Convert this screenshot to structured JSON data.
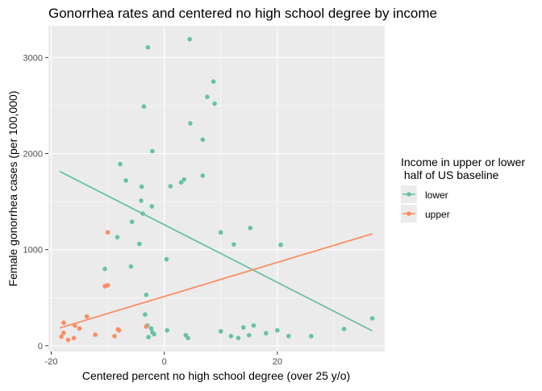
{
  "chart_data": {
    "type": "scatter",
    "title": "Gonorrhea rates and centered no high school degree by income",
    "xlabel": "Centered percent no high school degree (over 25 y/o)",
    "ylabel": "Female gonorrhea cases (per 100,000)",
    "xlim": [
      -20.5,
      39
    ],
    "ylim": [
      -60,
      3330
    ],
    "x_ticks": [
      -20,
      0,
      20
    ],
    "x_tick_labels": [
      "-20",
      "0",
      "20"
    ],
    "y_ticks": [
      0,
      1000,
      2000,
      3000
    ],
    "y_tick_labels": [
      "0",
      "1000",
      "2000",
      "3000"
    ],
    "grid": true,
    "legend": {
      "title_lines": [
        "Income in upper or lower",
        " half of US baseline"
      ],
      "position": "right"
    },
    "colors": {
      "lower": "#66c2a5",
      "upper": "#fc8d62",
      "panel": "#ebebeb"
    },
    "series": [
      {
        "name": "lower",
        "color": "#66c2a5",
        "points": [
          [
            4.5,
            3190
          ],
          [
            -2.9,
            3105
          ],
          [
            8.7,
            2750
          ],
          [
            7.6,
            2590
          ],
          [
            8.9,
            2520
          ],
          [
            -3.6,
            2490
          ],
          [
            4.6,
            2315
          ],
          [
            6.8,
            2145
          ],
          [
            -2.1,
            2025
          ],
          [
            -7.8,
            1890
          ],
          [
            6.8,
            1770
          ],
          [
            -6.8,
            1720
          ],
          [
            3.5,
            1730
          ],
          [
            3.0,
            1700
          ],
          [
            -4.0,
            1655
          ],
          [
            1.1,
            1660
          ],
          [
            -4.1,
            1510
          ],
          [
            -2.2,
            1450
          ],
          [
            -3.8,
            1375
          ],
          [
            -5.7,
            1290
          ],
          [
            15.2,
            1225
          ],
          [
            10.0,
            1180
          ],
          [
            -8.3,
            1130
          ],
          [
            12.3,
            1055
          ],
          [
            -4.4,
            1060
          ],
          [
            20.6,
            1050
          ],
          [
            0.4,
            900
          ],
          [
            -10.5,
            800
          ],
          [
            -5.9,
            825
          ],
          [
            -3.2,
            530
          ],
          [
            -3.4,
            325
          ],
          [
            -3.0,
            210
          ],
          [
            36.8,
            285
          ],
          [
            31.8,
            175
          ],
          [
            0.5,
            160
          ],
          [
            -2.3,
            180
          ],
          [
            -2.1,
            140
          ],
          [
            10.0,
            150
          ],
          [
            20.0,
            160
          ],
          [
            15.8,
            210
          ],
          [
            14.0,
            190
          ],
          [
            18.0,
            130
          ],
          [
            -1.8,
            120
          ],
          [
            11.8,
            100
          ],
          [
            13.1,
            80
          ],
          [
            15.0,
            110
          ],
          [
            22.0,
            100
          ],
          [
            26.0,
            100
          ],
          [
            3.8,
            110
          ],
          [
            4.2,
            80
          ],
          [
            -2.8,
            90
          ]
        ],
        "trend": [
          [
            -18.5,
            1815
          ],
          [
            36.8,
            155
          ]
        ]
      },
      {
        "name": "upper",
        "color": "#fc8d62",
        "points": [
          [
            -10.0,
            1180
          ],
          [
            -10.0,
            630
          ],
          [
            -10.5,
            620
          ],
          [
            -17.8,
            240
          ],
          [
            -15.0,
            180
          ],
          [
            -13.7,
            305
          ],
          [
            -15.8,
            210
          ],
          [
            -8.2,
            170
          ],
          [
            -8.0,
            160
          ],
          [
            -3.2,
            200
          ],
          [
            -12.2,
            115
          ],
          [
            -8.8,
            100
          ],
          [
            -17.8,
            135
          ],
          [
            -18.2,
            95
          ],
          [
            -16.0,
            80
          ],
          [
            -17.0,
            60
          ]
        ],
        "trend": [
          [
            -18.5,
            185
          ],
          [
            36.8,
            1165
          ]
        ]
      }
    ]
  }
}
